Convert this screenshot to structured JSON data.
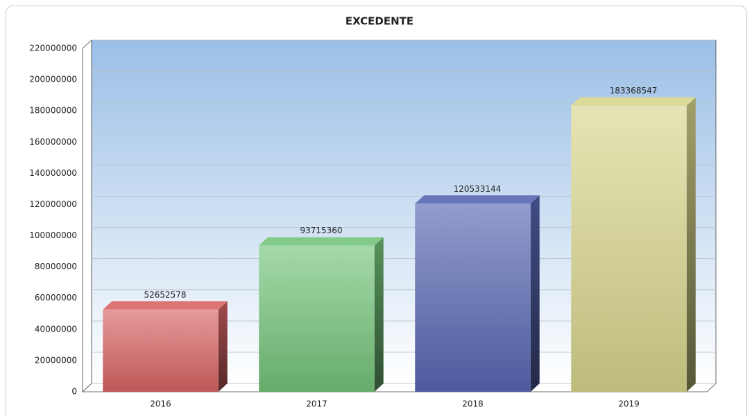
{
  "chart_data": {
    "type": "bar3d",
    "title": "EXCEDENTE",
    "categories": [
      "2016",
      "2017",
      "2018",
      "2019"
    ],
    "values": [
      52652578,
      93715360,
      120533144,
      183368547
    ],
    "colors": [
      "#d86464",
      "#74c47a",
      "#5866b2",
      "#d8d68c"
    ],
    "ylim": [
      0,
      220000000
    ],
    "yticks": [
      0,
      20000000,
      40000000,
      60000000,
      80000000,
      100000000,
      120000000,
      140000000,
      160000000,
      180000000,
      200000000,
      220000000
    ],
    "grid": true
  }
}
